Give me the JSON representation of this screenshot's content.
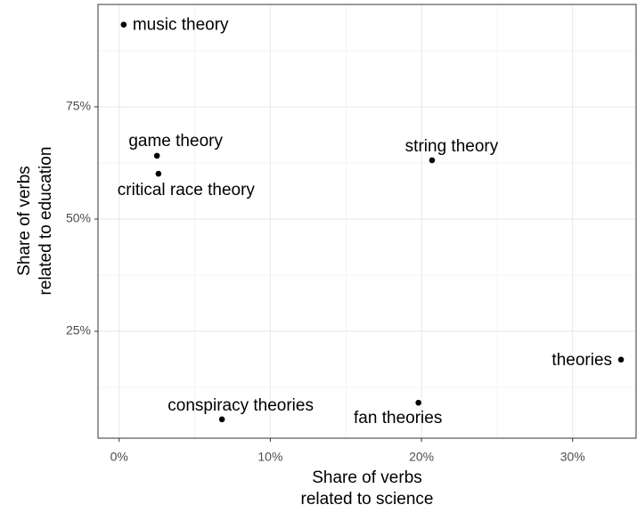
{
  "chart_data": {
    "type": "scatter",
    "xlabel": [
      "Share of verbs",
      "related to science"
    ],
    "ylabel": [
      "Share of verbs",
      "related to education"
    ],
    "labels": [
      "music theory",
      "game theory",
      "critical race theory",
      "string theory",
      "theories",
      "conspiracy theories",
      "fan theories"
    ],
    "x": [
      0.3,
      2.5,
      2.6,
      20.7,
      33.2,
      6.8,
      19.8
    ],
    "values": [
      93.3,
      64.1,
      60.1,
      63.1,
      18.7,
      5.4,
      9.1
    ],
    "color": "#000000",
    "xlim": [
      -1.4,
      34.2
    ],
    "ylim": [
      1.2,
      97.8
    ],
    "xticks": [
      {
        "value": 0,
        "label": "0%"
      },
      {
        "value": 10,
        "label": "10%"
      },
      {
        "value": 20,
        "label": "20%"
      },
      {
        "value": 30,
        "label": "30%"
      }
    ],
    "yticks": [
      {
        "value": 25,
        "label": "25%"
      },
      {
        "value": 50,
        "label": "50%"
      },
      {
        "value": 75,
        "label": "75%"
      }
    ],
    "xminor": [
      5,
      15,
      25
    ],
    "yminor": [
      12.5,
      37.5,
      62.5,
      87.5
    ],
    "grid": true
  }
}
